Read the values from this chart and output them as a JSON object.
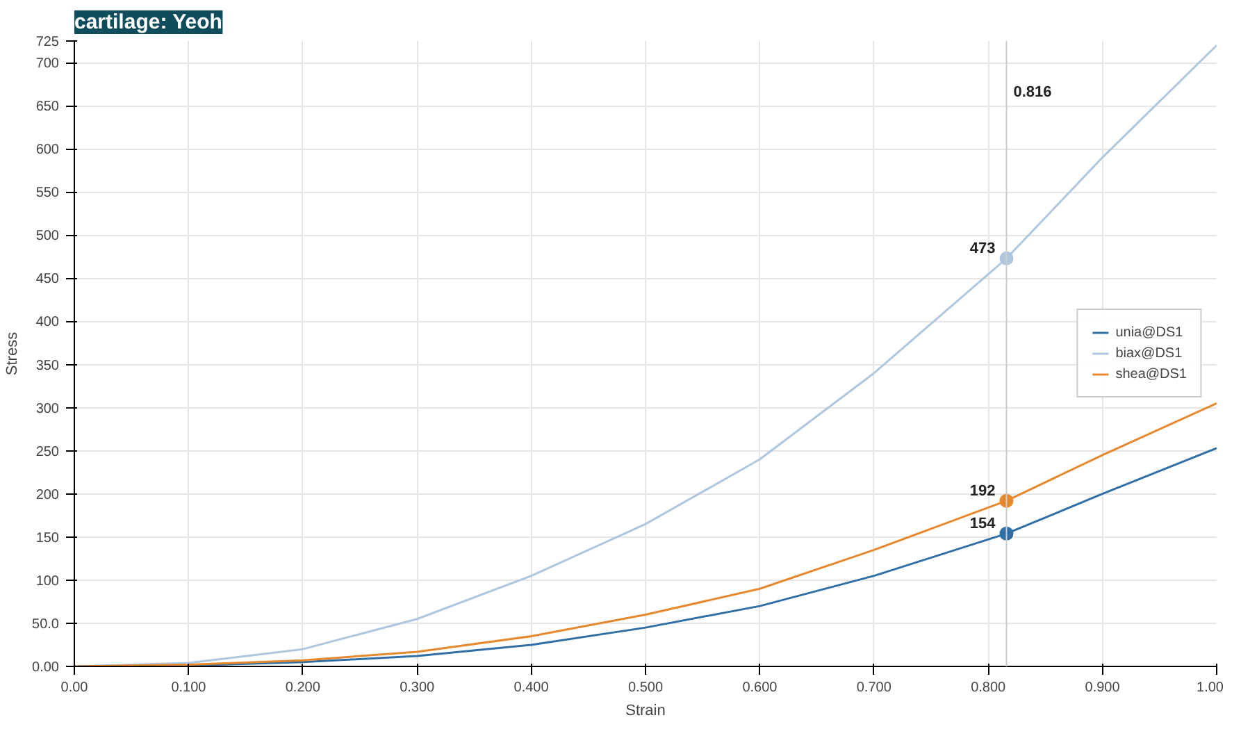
{
  "chart_data": {
    "type": "line",
    "title": "cartilage: Yeoh",
    "xlabel": "Strain",
    "ylabel": "Stress",
    "x": [
      0,
      0.1,
      0.2,
      0.3,
      0.4,
      0.5,
      0.6,
      0.7,
      0.816,
      0.9,
      1.0
    ],
    "series": [
      {
        "name": "unia@DS1",
        "color": "#2f6fa6",
        "values": [
          0,
          1,
          5,
          12,
          25,
          45,
          70,
          105,
          154,
          200,
          253
        ],
        "value_labels": [
          null,
          null,
          null,
          null,
          null,
          null,
          null,
          null,
          "154",
          null,
          null
        ]
      },
      {
        "name": "biax@DS1",
        "color": "#aec6de",
        "values": [
          0,
          4,
          20,
          55,
          105,
          165,
          240,
          340,
          473,
          590,
          720
        ],
        "value_labels": [
          null,
          null,
          null,
          null,
          null,
          null,
          null,
          null,
          "473",
          null,
          null
        ]
      },
      {
        "name": "shea@DS1",
        "color": "#e6892e",
        "values": [
          0,
          2,
          7,
          17,
          35,
          60,
          90,
          135,
          192,
          245,
          305
        ],
        "value_labels": [
          null,
          null,
          null,
          null,
          null,
          null,
          null,
          null,
          "192",
          null,
          null
        ]
      }
    ],
    "xlim": [
      0,
      1
    ],
    "ylim": [
      0,
      725
    ],
    "xticks": [
      {
        "value": 0,
        "label": "0.00"
      },
      {
        "value": 0.1,
        "label": "0.100"
      },
      {
        "value": 0.2,
        "label": "0.200"
      },
      {
        "value": 0.3,
        "label": "0.300"
      },
      {
        "value": 0.4,
        "label": "0.400"
      },
      {
        "value": 0.5,
        "label": "0.500"
      },
      {
        "value": 0.6,
        "label": "0.600"
      },
      {
        "value": 0.7,
        "label": "0.700"
      },
      {
        "value": 0.8,
        "label": "0.800"
      },
      {
        "value": 0.9,
        "label": "0.900"
      },
      {
        "value": 1,
        "label": "1.00"
      }
    ],
    "yticks": [
      {
        "value": 0,
        "label": "0.00"
      },
      {
        "value": 50,
        "label": "50.0"
      },
      100,
      150,
      200,
      250,
      300,
      350,
      400,
      450,
      500,
      550,
      600,
      650,
      700,
      725
    ],
    "grid": true,
    "legend": "right",
    "marker": "none",
    "line_style": "solid",
    "ref_lines": [
      {
        "axis": "x",
        "value": 0.816,
        "label": "0.816",
        "color": "#cccccc"
      }
    ]
  }
}
